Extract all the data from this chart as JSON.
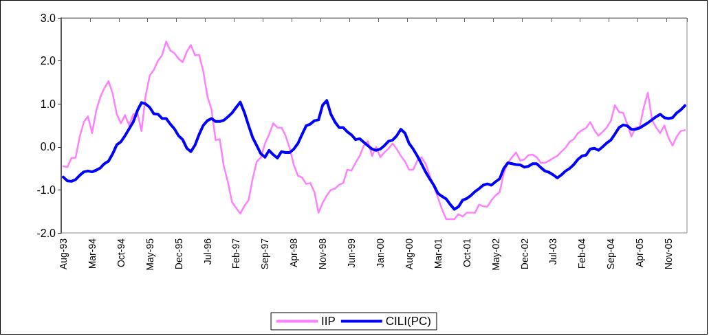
{
  "chart_data": {
    "type": "line",
    "categories": [
      "Aug-93",
      null,
      null,
      null,
      null,
      null,
      null,
      "Mar-94",
      null,
      null,
      null,
      null,
      null,
      null,
      "Oct-94",
      null,
      null,
      null,
      null,
      null,
      null,
      "May-95",
      null,
      null,
      null,
      null,
      null,
      null,
      "Dec-95",
      null,
      null,
      null,
      null,
      null,
      null,
      "Jul-96",
      null,
      null,
      null,
      null,
      null,
      null,
      "Feb-97",
      null,
      null,
      null,
      null,
      null,
      null,
      "Sep-97",
      null,
      null,
      null,
      null,
      null,
      null,
      "Apr-98",
      null,
      null,
      null,
      null,
      null,
      null,
      "Nov-98",
      null,
      null,
      null,
      null,
      null,
      null,
      "Jun-99",
      null,
      null,
      null,
      null,
      null,
      null,
      "Jan-00",
      null,
      null,
      null,
      null,
      null,
      null,
      "Aug-00",
      null,
      null,
      null,
      null,
      null,
      null,
      "Mar-01",
      null,
      null,
      null,
      null,
      null,
      null,
      "Oct-01",
      null,
      null,
      null,
      null,
      null,
      null,
      "May-02",
      null,
      null,
      null,
      null,
      null,
      null,
      "Dec-02",
      null,
      null,
      null,
      null,
      null,
      null,
      "Jul-03",
      null,
      null,
      null,
      null,
      null,
      null,
      "Feb-04",
      null,
      null,
      null,
      null,
      null,
      null,
      "Sep-04",
      null,
      null,
      null,
      null,
      null,
      null,
      "Apr-05",
      null,
      null,
      null,
      null,
      null,
      null,
      "Nov-05",
      null,
      null,
      null,
      null
    ],
    "series": [
      {
        "name": "IIP",
        "color": "#ff80ff",
        "values": [
          -0.45,
          -0.47,
          -0.26,
          -0.25,
          0.24,
          0.58,
          0.71,
          0.32,
          0.84,
          1.16,
          1.37,
          1.53,
          1.24,
          0.76,
          0.55,
          0.74,
          0.5,
          0.76,
          0.79,
          0.37,
          1.18,
          1.66,
          1.79,
          2.0,
          2.13,
          2.45,
          2.24,
          2.18,
          2.05,
          1.97,
          2.21,
          2.37,
          2.13,
          2.14,
          1.76,
          1.18,
          0.87,
          0.16,
          0.18,
          -0.45,
          -0.82,
          -1.29,
          -1.42,
          -1.55,
          -1.37,
          -1.24,
          -0.74,
          -0.34,
          -0.25,
          0.08,
          0.29,
          0.55,
          0.45,
          0.45,
          0.26,
          -0.03,
          -0.42,
          -0.67,
          -0.71,
          -0.86,
          -0.84,
          -1.05,
          -1.53,
          -1.3,
          -1.13,
          -1.0,
          -0.97,
          -0.88,
          -0.84,
          -0.53,
          -0.55,
          -0.37,
          -0.21,
          0.03,
          0.13,
          -0.21,
          0.0,
          -0.24,
          -0.13,
          -0.04,
          0.08,
          -0.05,
          -0.21,
          -0.34,
          -0.53,
          -0.53,
          -0.32,
          -0.24,
          -0.39,
          -0.66,
          -0.92,
          -1.18,
          -1.45,
          -1.68,
          -1.68,
          -1.68,
          -1.56,
          -1.62,
          -1.53,
          -1.53,
          -1.53,
          -1.34,
          -1.38,
          -1.39,
          -1.24,
          -1.13,
          -1.05,
          -0.61,
          -0.37,
          -0.24,
          -0.13,
          -0.32,
          -0.29,
          -0.19,
          -0.18,
          -0.24,
          -0.37,
          -0.37,
          -0.32,
          -0.26,
          -0.21,
          -0.11,
          -0.02,
          0.12,
          0.18,
          0.32,
          0.39,
          0.44,
          0.58,
          0.39,
          0.26,
          0.35,
          0.45,
          0.61,
          0.97,
          0.81,
          0.79,
          0.53,
          0.24,
          0.45,
          0.46,
          0.92,
          1.26,
          0.63,
          0.45,
          0.32,
          0.5,
          0.21,
          0.03,
          0.24,
          0.37,
          0.39
        ]
      },
      {
        "name": "CILI(PC)",
        "color": "#0000ff",
        "values": [
          -0.7,
          -0.79,
          -0.8,
          -0.76,
          -0.66,
          -0.58,
          -0.56,
          -0.58,
          -0.54,
          -0.49,
          -0.39,
          -0.33,
          -0.16,
          0.05,
          0.12,
          0.26,
          0.42,
          0.58,
          0.84,
          1.03,
          1.0,
          0.92,
          0.77,
          0.76,
          0.66,
          0.66,
          0.53,
          0.42,
          0.26,
          0.17,
          -0.03,
          -0.11,
          0.04,
          0.29,
          0.5,
          0.61,
          0.66,
          0.59,
          0.59,
          0.62,
          0.7,
          0.79,
          0.92,
          1.04,
          0.8,
          0.5,
          0.22,
          0.03,
          -0.16,
          -0.24,
          -0.08,
          -0.18,
          -0.26,
          -0.11,
          -0.13,
          -0.13,
          -0.05,
          0.08,
          0.29,
          0.49,
          0.53,
          0.61,
          0.63,
          0.97,
          1.08,
          0.76,
          0.58,
          0.45,
          0.45,
          0.35,
          0.28,
          0.17,
          0.19,
          0.11,
          0.03,
          -0.05,
          -0.08,
          -0.05,
          0.03,
          0.13,
          0.16,
          0.26,
          0.41,
          0.32,
          0.08,
          -0.05,
          -0.21,
          -0.39,
          -0.58,
          -0.74,
          -0.89,
          -1.08,
          -1.15,
          -1.21,
          -1.34,
          -1.45,
          -1.39,
          -1.24,
          -1.2,
          -1.13,
          -1.04,
          -0.97,
          -0.89,
          -0.86,
          -0.89,
          -0.81,
          -0.74,
          -0.5,
          -0.37,
          -0.39,
          -0.41,
          -0.42,
          -0.47,
          -0.45,
          -0.39,
          -0.39,
          -0.48,
          -0.56,
          -0.59,
          -0.65,
          -0.72,
          -0.65,
          -0.56,
          -0.5,
          -0.41,
          -0.29,
          -0.21,
          -0.19,
          -0.05,
          -0.03,
          -0.08,
          0.0,
          0.09,
          0.16,
          0.3,
          0.45,
          0.51,
          0.49,
          0.41,
          0.41,
          0.44,
          0.5,
          0.56,
          0.63,
          0.7,
          0.76,
          0.68,
          0.66,
          0.68,
          0.79,
          0.86,
          0.96
        ]
      }
    ],
    "ylim": [
      -2,
      3
    ],
    "yticks": [
      {
        "value": -2,
        "label": "-2.0"
      },
      {
        "value": -1,
        "label": "-1.0"
      },
      {
        "value": 0,
        "label": "0.0"
      },
      {
        "value": 1,
        "label": "1.0"
      },
      {
        "value": 2,
        "label": "2.0"
      },
      {
        "value": 3,
        "label": "3.0"
      }
    ],
    "legend": "bottom",
    "marker": "none",
    "line_style": "solid"
  }
}
